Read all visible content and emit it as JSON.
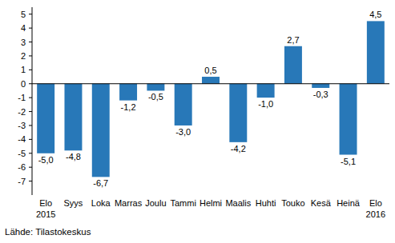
{
  "chart_data": {
    "type": "bar",
    "categories": [
      "Elo\n2015",
      "Syys",
      "Loka",
      "Marras",
      "Joulu",
      "Tammi",
      "Helmi",
      "Maalis",
      "Huhti",
      "Touko",
      "Kesä",
      "Heinä",
      "Elo\n2016"
    ],
    "values": [
      -5.0,
      -4.8,
      -6.7,
      -1.2,
      -0.5,
      -3.0,
      0.5,
      -4.2,
      -1.0,
      2.7,
      -0.3,
      -5.1,
      4.5
    ],
    "value_labels": [
      "-5,0",
      "-4,8",
      "-6,7",
      "-1,2",
      "-0,5",
      "-3,0",
      "0,5",
      "-4,2",
      "-1,0",
      "2,7",
      "-0,3",
      "-5,1",
      "4,5"
    ],
    "color": "#2878b8",
    "ylim": [
      -8,
      5.5
    ],
    "yticks": [
      -7,
      -6,
      -5,
      -4,
      -3,
      -2,
      -1,
      0,
      1,
      2,
      3,
      4,
      5
    ],
    "grid": false,
    "data_labels": true,
    "source": "Lähde: Tilastokeskus"
  }
}
